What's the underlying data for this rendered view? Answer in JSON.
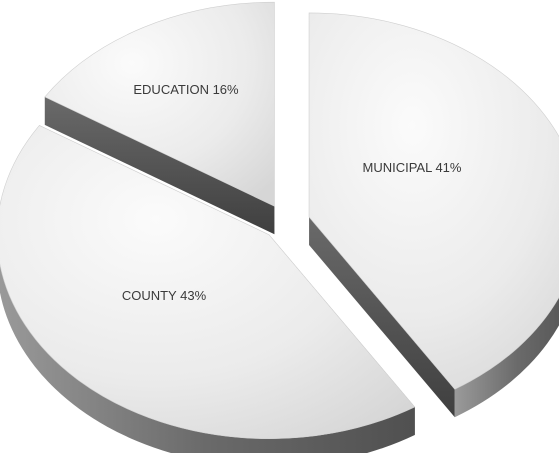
{
  "chart_data": {
    "type": "pie",
    "slices": [
      {
        "label": "MUNICIPAL",
        "value": 41,
        "display": "MUNICIPAL 41%"
      },
      {
        "label": "COUNTY",
        "value": 43,
        "display": "COUNTY 43%"
      },
      {
        "label": "EDUCATION",
        "value": 16,
        "display": "EDUCATION 16%"
      }
    ],
    "style": "3d-exploded",
    "legend": "none",
    "colors": {
      "top_light": "#f8f8f8",
      "top_dark": "#d9d9d9",
      "side_dark": "#555555",
      "side_light": "#9a9a9a"
    }
  }
}
